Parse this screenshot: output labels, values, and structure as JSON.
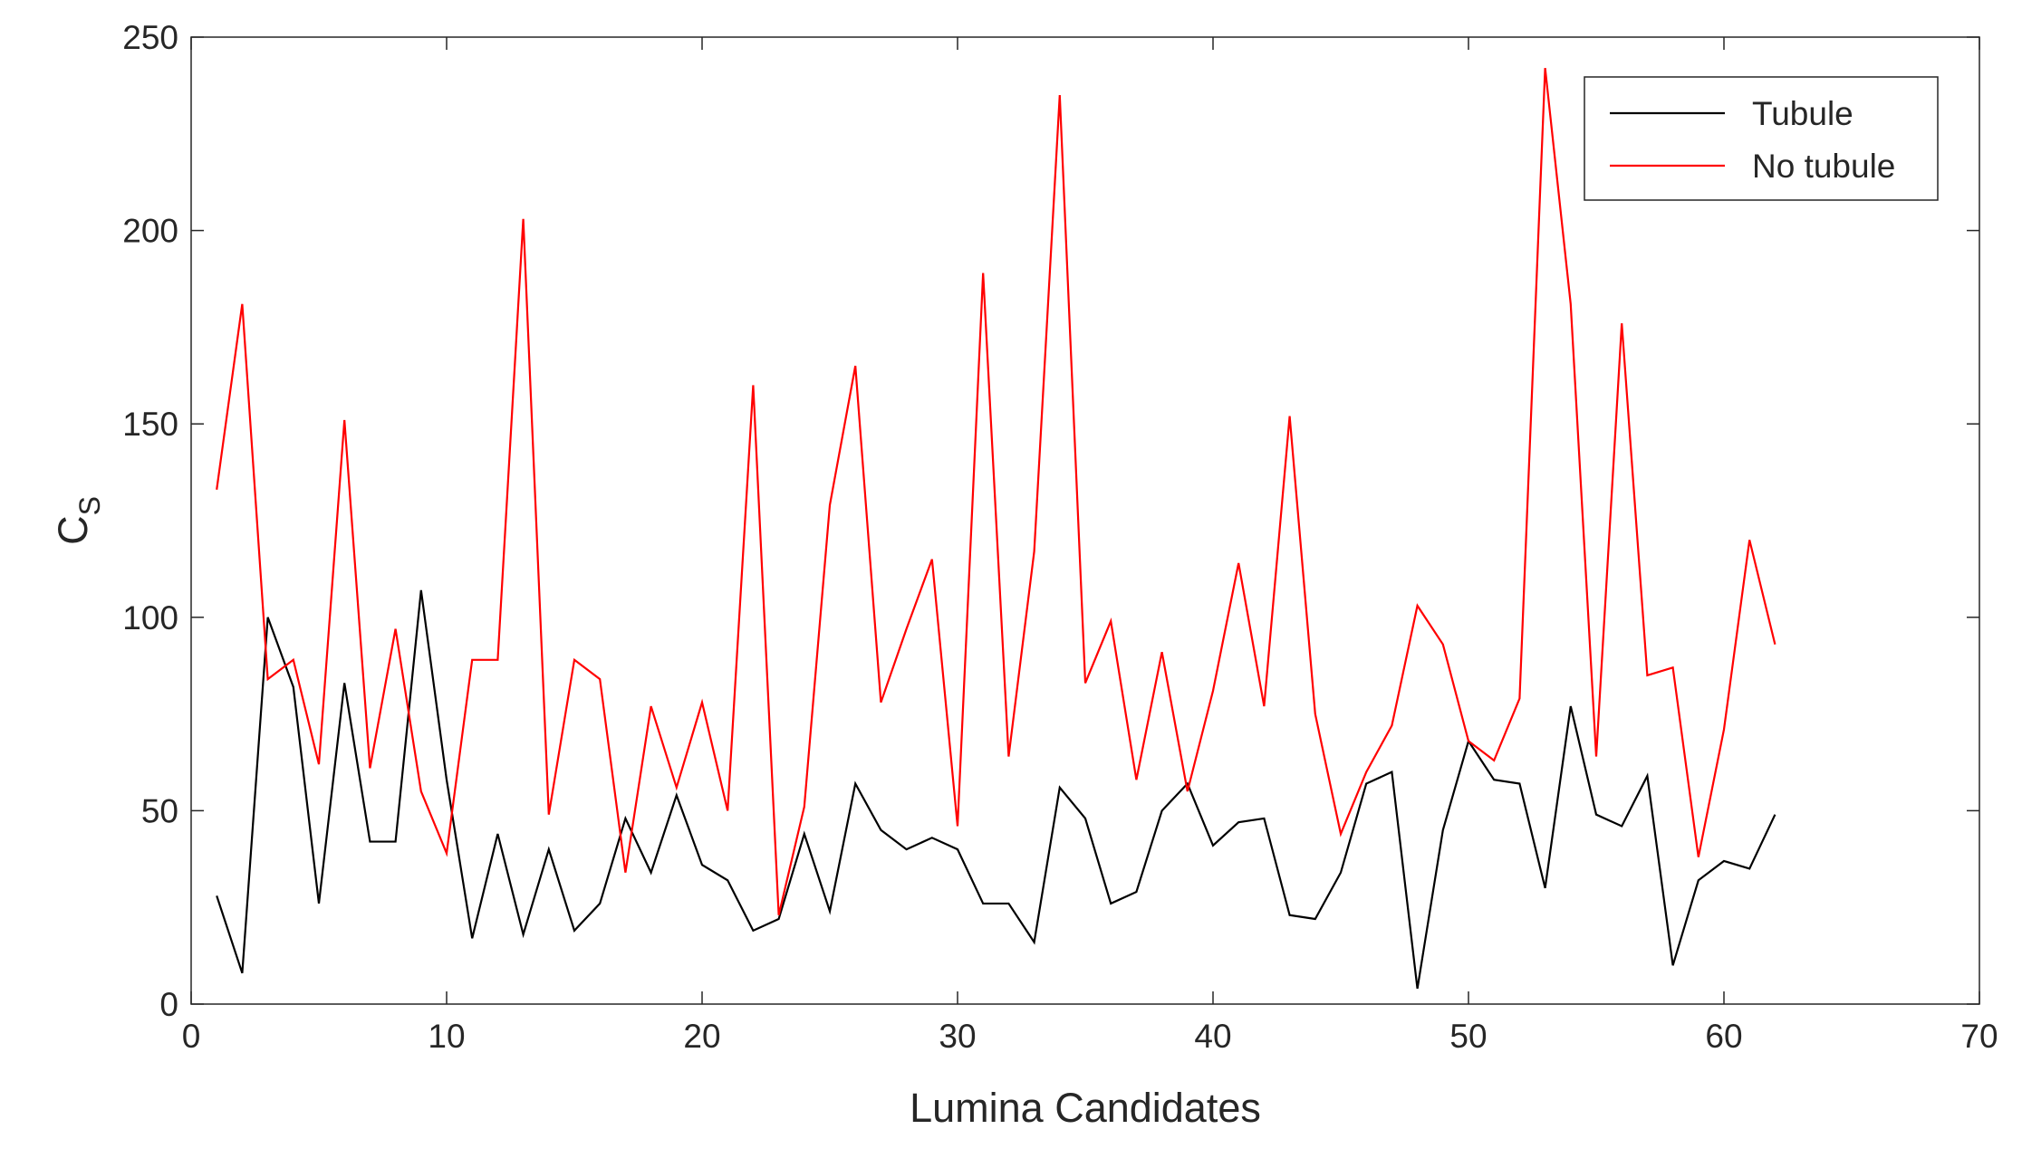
{
  "chart_data": {
    "type": "line",
    "xlabel": "Lumina Candidates",
    "ylabel": "C",
    "ylabel_subscript": "S",
    "x": [
      1,
      2,
      3,
      4,
      5,
      6,
      7,
      8,
      9,
      10,
      11,
      12,
      13,
      14,
      15,
      16,
      17,
      18,
      19,
      20,
      21,
      22,
      23,
      24,
      25,
      26,
      27,
      28,
      29,
      30,
      31,
      32,
      33,
      34,
      35,
      36,
      37,
      38,
      39,
      40,
      41,
      42,
      43,
      44,
      45,
      46,
      47,
      48,
      49,
      50,
      51,
      52,
      53,
      54,
      55,
      56,
      57,
      58,
      59,
      60,
      61,
      62
    ],
    "series": [
      {
        "name": "Tubule",
        "color": "#000000",
        "values": [
          28,
          8,
          100,
          82,
          26,
          83,
          42,
          42,
          107,
          58,
          17,
          44,
          18,
          40,
          19,
          26,
          48,
          34,
          54,
          36,
          32,
          19,
          22,
          44,
          24,
          57,
          45,
          40,
          43,
          40,
          26,
          26,
          16,
          56,
          48,
          26,
          29,
          50,
          57,
          41,
          47,
          48,
          23,
          22,
          34,
          57,
          60,
          4,
          45,
          68,
          58,
          57,
          30,
          77,
          49,
          46,
          59,
          10,
          32,
          37,
          35,
          49
        ]
      },
      {
        "name": "No tubule",
        "color": "#ff0000",
        "values": [
          133,
          181,
          84,
          89,
          62,
          151,
          61,
          97,
          55,
          39,
          89,
          89,
          203,
          49,
          89,
          84,
          34,
          77,
          56,
          78,
          50,
          160,
          23,
          51,
          129,
          165,
          78,
          97,
          115,
          46,
          189,
          64,
          117,
          235,
          83,
          99,
          58,
          91,
          55,
          81,
          114,
          77,
          152,
          75,
          44,
          60,
          72,
          103,
          93,
          68,
          63,
          79,
          242,
          181,
          64,
          176,
          85,
          87,
          38,
          71,
          120,
          93
        ]
      }
    ],
    "xlim": [
      0,
      70
    ],
    "xticks": [
      0,
      10,
      20,
      30,
      40,
      50,
      60,
      70
    ],
    "ylim": [
      0,
      250
    ],
    "yticks": [
      0,
      50,
      100,
      150,
      200,
      250
    ],
    "legend": "top-right"
  }
}
